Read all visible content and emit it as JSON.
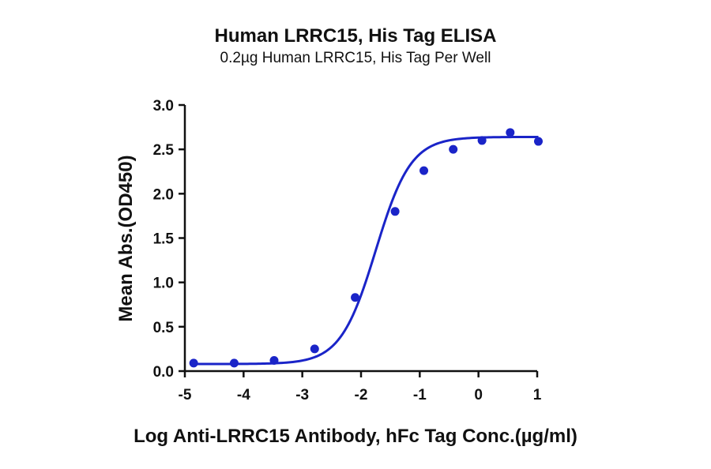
{
  "chart_data": {
    "type": "scatter",
    "title": "Human LRRC15, His Tag ELISA",
    "subtitle": "0.2µg Human LRRC15, His Tag Per Well",
    "xlabel": "Log Anti-LRRC15 Antibody, hFc Tag Conc.(µg/ml)",
    "ylabel": "Mean Abs.(OD450)",
    "xlim": [
      -5,
      1
    ],
    "ylim": [
      0,
      3
    ],
    "xticks": [
      -5,
      -4,
      -3,
      -2,
      -1,
      0,
      1
    ],
    "xtick_labels": [
      "-5",
      "-4",
      "-3",
      "-2",
      "-1",
      "0",
      "1"
    ],
    "yticks": [
      0,
      0.5,
      1,
      1.5,
      2,
      2.5,
      3
    ],
    "ytick_labels": [
      "0.0",
      "0.5",
      "1.0",
      "1.5",
      "2.0",
      "2.5",
      "3.0"
    ],
    "grid": false,
    "series": [
      {
        "x": [
          -4.85,
          -4.16,
          -3.48,
          -2.79,
          -2.1,
          -1.42,
          -0.93,
          -0.43,
          0.06,
          0.54,
          1.02
        ],
        "y": [
          0.09,
          0.09,
          0.12,
          0.25,
          0.83,
          1.8,
          2.26,
          2.5,
          2.6,
          2.69,
          2.59
        ],
        "fit": "4PL",
        "fit_params": {
          "bottom": 0.08,
          "top": 2.64,
          "log_ec50": -1.75,
          "hill": 1.45
        }
      }
    ],
    "colors": {
      "series": "#1a24c8",
      "axis": "#111111"
    }
  }
}
